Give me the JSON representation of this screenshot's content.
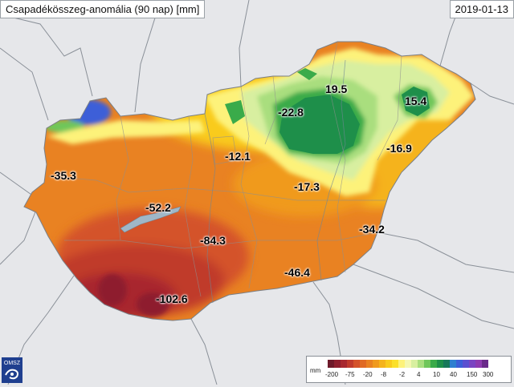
{
  "header": {
    "title": "Csapadékösszeg-anomália (90 nap) [mm]",
    "date": "2019-01-13"
  },
  "map_values": [
    {
      "id": "v1",
      "text": "19.5"
    },
    {
      "id": "v2",
      "text": "15.4"
    },
    {
      "id": "v3",
      "text": "-22.8"
    },
    {
      "id": "v4",
      "text": "-12.1"
    },
    {
      "id": "v5",
      "text": "-16.9"
    },
    {
      "id": "v6",
      "text": "-35.3"
    },
    {
      "id": "v7",
      "text": "-17.3"
    },
    {
      "id": "v8",
      "text": "-52.2"
    },
    {
      "id": "v9",
      "text": "-34.2"
    },
    {
      "id": "v10",
      "text": "-84.3"
    },
    {
      "id": "v11",
      "text": "-46.4"
    },
    {
      "id": "v12",
      "text": "-102.6"
    }
  ],
  "legend": {
    "unit": "mm",
    "ticks": [
      "-200",
      "-75",
      "-20",
      "-8",
      "-2",
      "4",
      "10",
      "40",
      "150",
      "300"
    ],
    "colors": [
      "#6e1a2a",
      "#8e1f2e",
      "#a8282f",
      "#c03a2c",
      "#d4522a",
      "#e06a24",
      "#e98222",
      "#f09a1e",
      "#f5b31c",
      "#f9cb1e",
      "#fbe02a",
      "#fdf27a",
      "#f4f7b0",
      "#d8efa0",
      "#a9de7e",
      "#6fc65a",
      "#3aab4a",
      "#1e8f4a",
      "#17785a",
      "#2d7fd0",
      "#3c5fd8",
      "#5b4fd0",
      "#7a44c2",
      "#8e3bb0",
      "#6a2a8a"
    ]
  },
  "logo_text": "OMSZ"
}
